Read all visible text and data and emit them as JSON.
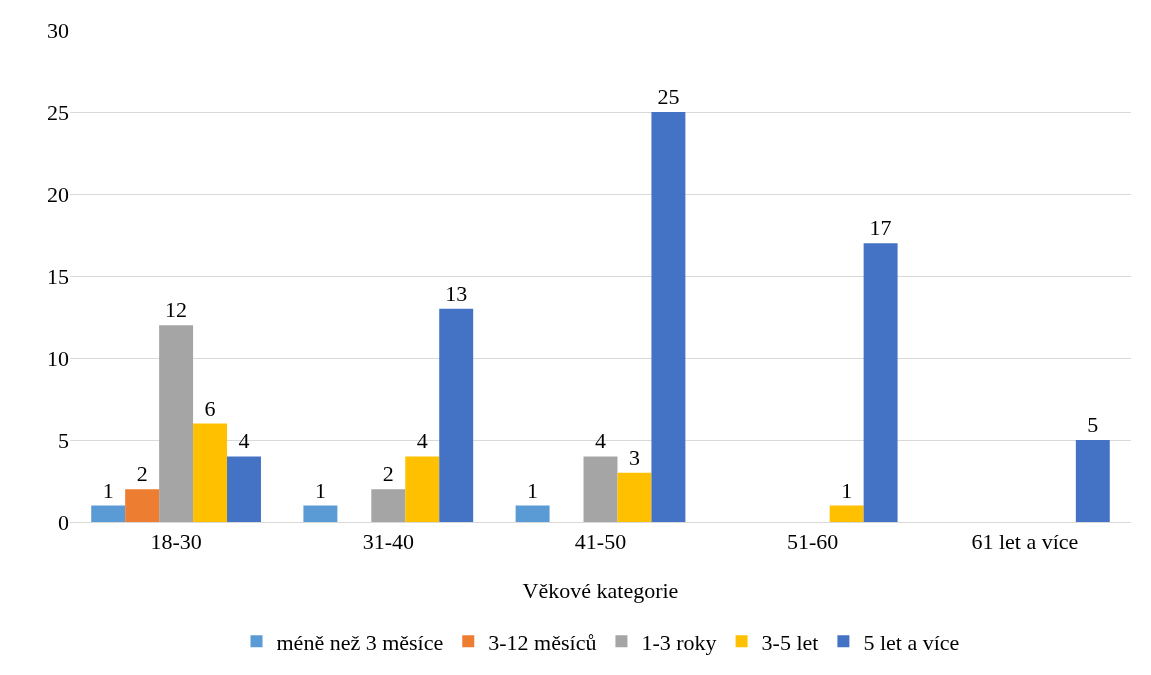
{
  "chart_data": {
    "type": "bar",
    "xlabel": "Věkové kategorie",
    "categories": [
      "18-30",
      "31-40",
      "41-50",
      "51-60",
      "61 let a více"
    ],
    "series": [
      {
        "name": "méně než 3 měsíce",
        "color": "#5b9bd5",
        "values": [
          1,
          1,
          1,
          null,
          null
        ]
      },
      {
        "name": "3-12 měsíců",
        "color": "#ed7d31",
        "values": [
          2,
          null,
          null,
          null,
          null
        ]
      },
      {
        "name": "1-3 roky",
        "color": "#a5a5a5",
        "values": [
          12,
          2,
          4,
          null,
          null
        ]
      },
      {
        "name": "3-5 let",
        "color": "#ffc000",
        "values": [
          6,
          4,
          3,
          1,
          null
        ]
      },
      {
        "name": "5 let a více",
        "color": "#4472c4",
        "values": [
          4,
          13,
          25,
          17,
          5
        ]
      }
    ],
    "ylim": [
      0,
      30
    ],
    "yticks": [
      0,
      5,
      10,
      15,
      20,
      25,
      30
    ],
    "grid": "y",
    "legend": "bottom",
    "data_labels": true
  }
}
